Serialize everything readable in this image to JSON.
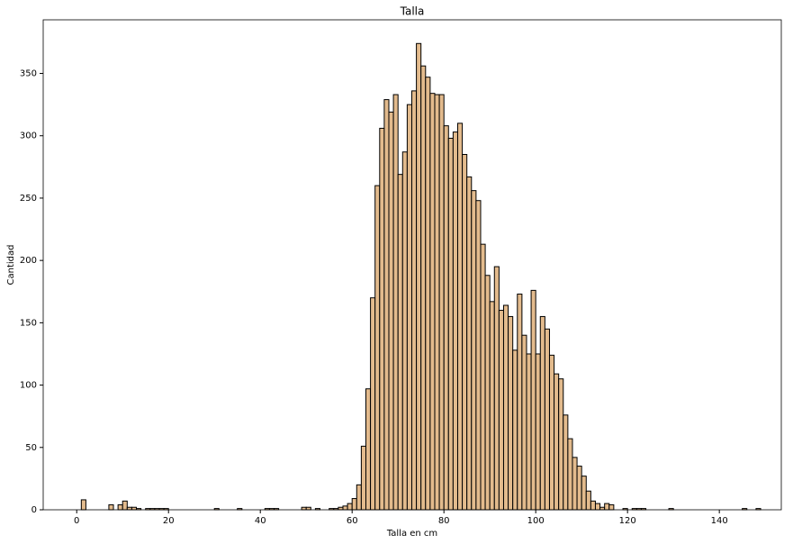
{
  "chart_data": {
    "type": "histogram",
    "title": "Talla",
    "x_label": "Talla en cm",
    "y_label": "Cantidad",
    "color": "#e3bb8d",
    "edgecolor": "#000000",
    "bins": [
      1,
      2,
      3,
      4,
      5,
      6,
      7,
      8,
      9,
      10,
      11,
      12,
      13,
      14,
      15,
      16,
      17,
      18,
      19,
      20,
      21,
      22,
      23,
      24,
      25,
      26,
      27,
      28,
      29,
      30,
      31,
      32,
      33,
      34,
      35,
      36,
      37,
      38,
      39,
      40,
      41,
      42,
      43,
      44,
      45,
      46,
      47,
      48,
      49,
      50,
      51,
      52,
      53,
      54,
      55,
      56,
      57,
      58,
      59,
      60,
      61,
      62,
      63,
      64,
      65,
      66,
      67,
      68,
      69,
      70,
      71,
      72,
      73,
      74,
      75,
      76,
      77,
      78,
      79,
      80,
      81,
      82,
      83,
      84,
      85,
      86,
      87,
      88,
      89,
      90,
      91,
      92,
      93,
      94,
      95,
      96,
      97,
      98,
      99,
      100,
      101,
      102,
      103,
      104,
      105,
      106,
      107,
      108,
      109,
      110,
      111,
      112,
      113,
      114,
      115,
      116,
      117,
      118,
      119,
      120,
      121,
      122,
      123,
      124,
      125,
      126,
      127,
      128,
      129,
      130,
      131,
      132,
      133,
      134,
      135,
      136,
      137,
      138,
      139,
      140,
      141,
      142,
      143,
      144,
      145,
      146,
      147,
      148,
      149,
      150
    ],
    "counts": [
      8,
      0,
      0,
      0,
      0,
      0,
      4,
      0,
      4,
      7,
      2,
      2,
      1,
      0,
      1,
      1,
      1,
      1,
      1,
      0,
      0,
      0,
      0,
      0,
      0,
      0,
      0,
      0,
      0,
      1,
      0,
      0,
      0,
      0,
      1,
      0,
      0,
      0,
      0,
      0,
      1,
      1,
      1,
      0,
      0,
      0,
      0,
      0,
      2,
      2,
      0,
      1,
      0,
      0,
      1,
      1,
      2,
      3,
      5,
      9,
      20,
      51,
      97,
      170,
      260,
      306,
      329,
      319,
      333,
      269,
      287,
      325,
      336,
      374,
      356,
      347,
      334,
      333,
      333,
      308,
      298,
      303,
      310,
      285,
      267,
      256,
      248,
      213,
      188,
      167,
      195,
      160,
      164,
      155,
      128,
      173,
      140,
      125,
      176,
      125,
      155,
      145,
      124,
      109,
      105,
      76,
      57,
      42,
      35,
      27,
      15,
      7,
      5,
      2,
      5,
      4,
      0,
      0,
      1,
      0,
      1,
      1,
      1,
      0,
      0,
      0,
      0,
      0,
      1,
      0,
      0,
      0,
      0,
      0,
      0,
      0,
      0,
      0,
      0,
      0,
      0,
      0,
      0,
      0,
      1,
      0,
      0,
      1,
      0
    ],
    "xlim": [
      -7.3,
      153.5
    ],
    "xticks": [
      0,
      20,
      40,
      60,
      80,
      100,
      120,
      140
    ],
    "ylim": [
      0,
      393
    ],
    "yticks": [
      0,
      50,
      100,
      150,
      200,
      250,
      300,
      350
    ]
  }
}
